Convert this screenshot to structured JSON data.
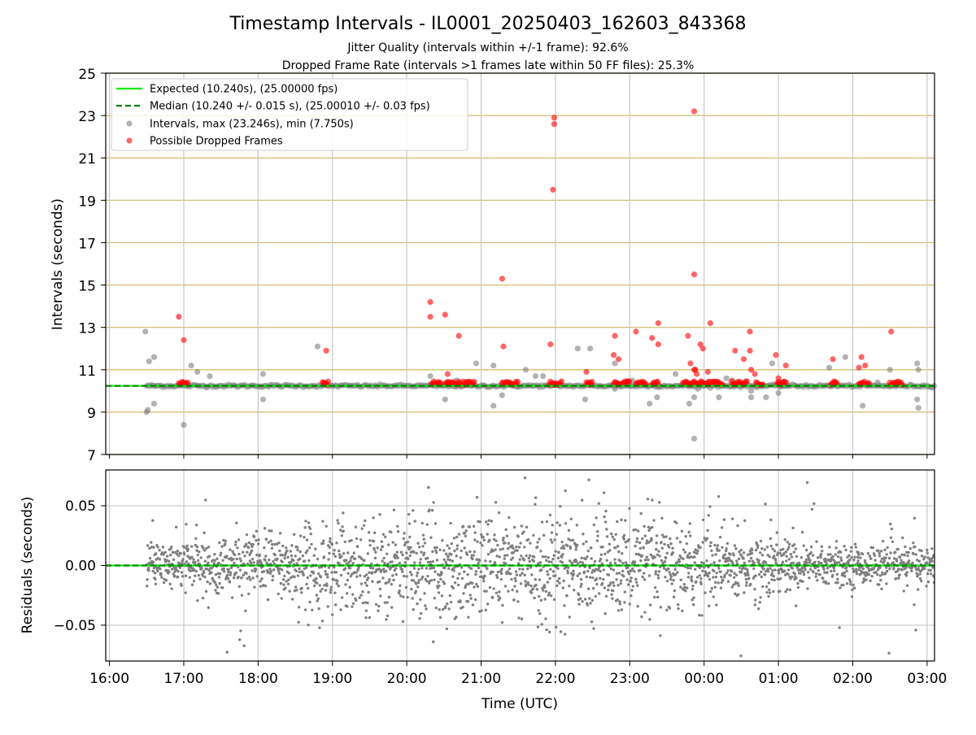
{
  "figure": {
    "title": "Timestamp Intervals - IL0001_20250403_162603_843368",
    "subtitle_1": "Jitter Quality (intervals within +/-1 frame): 92.6%",
    "subtitle_2": "Dropped Frame Rate (intervals >1 frames late within 50 FF files): 25.3%"
  },
  "colors": {
    "expected": "#00ee00",
    "median": "#008000",
    "intervals": "#808080",
    "dropped": "#ff0000",
    "hgrid": "#d4b86a",
    "vgrid": "#c8c8c8"
  },
  "chart_data": [
    {
      "type": "scatter",
      "ylabel": "Intervals (seconds)",
      "ylim": [
        7,
        25
      ],
      "xlim": [
        "15:57",
        "03:06"
      ],
      "yticks": [
        "7",
        "9",
        "11",
        "13",
        "15",
        "17",
        "19",
        "21",
        "23",
        "25"
      ],
      "grid": true,
      "legend_position": "upper-left",
      "legend": [
        "Expected (10.240s), (25.00000 fps)",
        "Median (10.240 +/- 0.015 s), (25.00010 +/- 0.03 fps)",
        "Intervals, max (23.246s), min (7.750s)",
        "Possible Dropped Frames"
      ],
      "expected_value": 10.24,
      "median_value": 10.24,
      "baseline_time_range": [
        "16:30",
        "03:06"
      ],
      "series": [
        {
          "name": "Intervals, max (23.246s), min (7.750s)",
          "points": [
            [
              "16:29",
              12.8
            ],
            [
              "16:30",
              9.0
            ],
            [
              "16:31",
              9.1
            ],
            [
              "16:32",
              11.4
            ],
            [
              "16:36",
              11.6
            ],
            [
              "16:36",
              9.4
            ],
            [
              "17:00",
              8.4
            ],
            [
              "17:06",
              11.2
            ],
            [
              "17:11",
              10.9
            ],
            [
              "17:21",
              10.7
            ],
            [
              "18:04",
              10.8
            ],
            [
              "18:04",
              9.6
            ],
            [
              "18:48",
              12.1
            ],
            [
              "20:19",
              10.7
            ],
            [
              "20:31",
              9.6
            ],
            [
              "20:40",
              10.5
            ],
            [
              "20:56",
              11.3
            ],
            [
              "21:10",
              9.3
            ],
            [
              "21:10",
              11.2
            ],
            [
              "21:17",
              9.8
            ],
            [
              "21:21",
              10.4
            ],
            [
              "21:36",
              11.0
            ],
            [
              "21:44",
              10.7
            ],
            [
              "21:50",
              10.7
            ],
            [
              "22:18",
              12.0
            ],
            [
              "22:24",
              9.6
            ],
            [
              "22:28",
              12.0
            ],
            [
              "22:48",
              10.1
            ],
            [
              "22:48",
              11.3
            ],
            [
              "23:02",
              10.5
            ],
            [
              "23:16",
              9.4
            ],
            [
              "23:22",
              9.7
            ],
            [
              "23:37",
              10.8
            ],
            [
              "23:48",
              9.4
            ],
            [
              "23:52",
              9.7
            ],
            [
              "23:52",
              7.75
            ],
            [
              "23:55",
              10.1
            ],
            [
              "00:12",
              9.7
            ],
            [
              "00:18",
              10.6
            ],
            [
              "00:23",
              10.5
            ],
            [
              "00:38",
              9.7
            ],
            [
              "00:38",
              10.0
            ],
            [
              "00:50",
              9.7
            ],
            [
              "00:55",
              11.3
            ],
            [
              "01:00",
              9.9
            ],
            [
              "01:41",
              11.1
            ],
            [
              "01:54",
              11.6
            ],
            [
              "02:08",
              9.3
            ],
            [
              "02:20",
              10.4
            ],
            [
              "02:30",
              11.0
            ],
            [
              "02:52",
              11.3
            ],
            [
              "02:52",
              9.6
            ],
            [
              "02:53",
              9.2
            ],
            [
              "02:53",
              11.0
            ]
          ]
        },
        {
          "name": "Possible Dropped Frames",
          "points": [
            [
              "16:56",
              13.5
            ],
            [
              "17:00",
              12.4
            ],
            [
              "18:55",
              11.9
            ],
            [
              "20:19",
              14.2
            ],
            [
              "20:19",
              13.5
            ],
            [
              "20:31",
              13.6
            ],
            [
              "20:33",
              10.8
            ],
            [
              "20:42",
              12.6
            ],
            [
              "21:17",
              15.3
            ],
            [
              "21:18",
              12.1
            ],
            [
              "21:56",
              12.2
            ],
            [
              "21:59",
              22.9
            ],
            [
              "21:59",
              22.6
            ],
            [
              "21:58",
              19.5
            ],
            [
              "22:25",
              10.9
            ],
            [
              "22:47",
              11.7
            ],
            [
              "22:48",
              12.6
            ],
            [
              "22:51",
              11.5
            ],
            [
              "23:05",
              12.8
            ],
            [
              "23:18",
              12.5
            ],
            [
              "23:23",
              13.2
            ],
            [
              "23:23",
              12.2
            ],
            [
              "23:47",
              12.6
            ],
            [
              "23:49",
              11.3
            ],
            [
              "23:52",
              23.2
            ],
            [
              "23:52",
              15.5
            ],
            [
              "23:52",
              11.0
            ],
            [
              "23:53",
              11.0
            ],
            [
              "23:54",
              10.8
            ],
            [
              "23:57",
              12.2
            ],
            [
              "23:59",
              12.0
            ],
            [
              "00:03",
              10.9
            ],
            [
              "00:05",
              13.2
            ],
            [
              "00:25",
              11.9
            ],
            [
              "00:32",
              11.5
            ],
            [
              "00:37",
              12.8
            ],
            [
              "00:37",
              11.9
            ],
            [
              "00:38",
              11.0
            ],
            [
              "00:41",
              10.8
            ],
            [
              "00:58",
              11.7
            ],
            [
              "01:00",
              10.6
            ],
            [
              "01:06",
              11.2
            ],
            [
              "01:44",
              11.5
            ],
            [
              "02:05",
              11.1
            ],
            [
              "02:07",
              11.6
            ],
            [
              "02:10",
              11.2
            ],
            [
              "02:31",
              12.8
            ]
          ],
          "clusters": [
            [
              "16:56",
              "17:04"
            ],
            [
              "18:52",
              "18:57"
            ],
            [
              "20:20",
              "20:28"
            ],
            [
              "20:31",
              "20:55"
            ],
            [
              "21:17",
              "21:30"
            ],
            [
              "21:55",
              "22:05"
            ],
            [
              "22:25",
              "22:30"
            ],
            [
              "22:47",
              "23:00"
            ],
            [
              "23:05",
              "23:14"
            ],
            [
              "23:18",
              "23:24"
            ],
            [
              "23:43",
              "24:15"
            ],
            [
              "00:22",
              "00:35"
            ],
            [
              "00:42",
              "00:48"
            ],
            [
              "00:59",
              "01:07"
            ],
            [
              "01:42",
              "01:48"
            ],
            [
              "02:05",
              "02:14"
            ],
            [
              "02:30",
              "02:40"
            ]
          ]
        }
      ]
    },
    {
      "type": "scatter",
      "xlabel": "Time (UTC)",
      "ylabel": "Residuals (seconds)",
      "ylim": [
        -0.08,
        0.08
      ],
      "yticks": [
        "−0.05",
        "0.00",
        "0.05"
      ],
      "xticks": [
        "16:00",
        "17:00",
        "18:00",
        "19:00",
        "20:00",
        "21:00",
        "22:00",
        "23:00",
        "00:00",
        "01:00",
        "02:00",
        "03:00"
      ],
      "grid": true,
      "series": [
        {
          "name": "Residuals",
          "time_range": [
            "16:30",
            "03:06"
          ],
          "values_note_range": [
            -0.07,
            0.08
          ]
        }
      ]
    }
  ]
}
